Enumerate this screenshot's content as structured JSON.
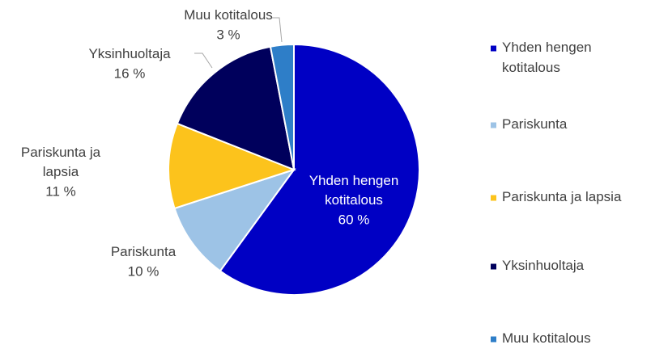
{
  "chart_data": {
    "type": "pie",
    "categories": [
      "Yhden hengen kotitalous",
      "Pariskunta",
      "Pariskunta ja lapsia",
      "Yksinhuoltaja",
      "Muu kotitalous"
    ],
    "values": [
      60,
      10,
      11,
      16,
      3
    ],
    "value_labels": [
      "60 %",
      "10 %",
      "11 %",
      "16 %",
      "3 %"
    ],
    "colors": [
      "#0000c4",
      "#9dc3e6",
      "#fcc31c",
      "#00005c",
      "#2e7ec8"
    ],
    "legend": "right"
  }
}
